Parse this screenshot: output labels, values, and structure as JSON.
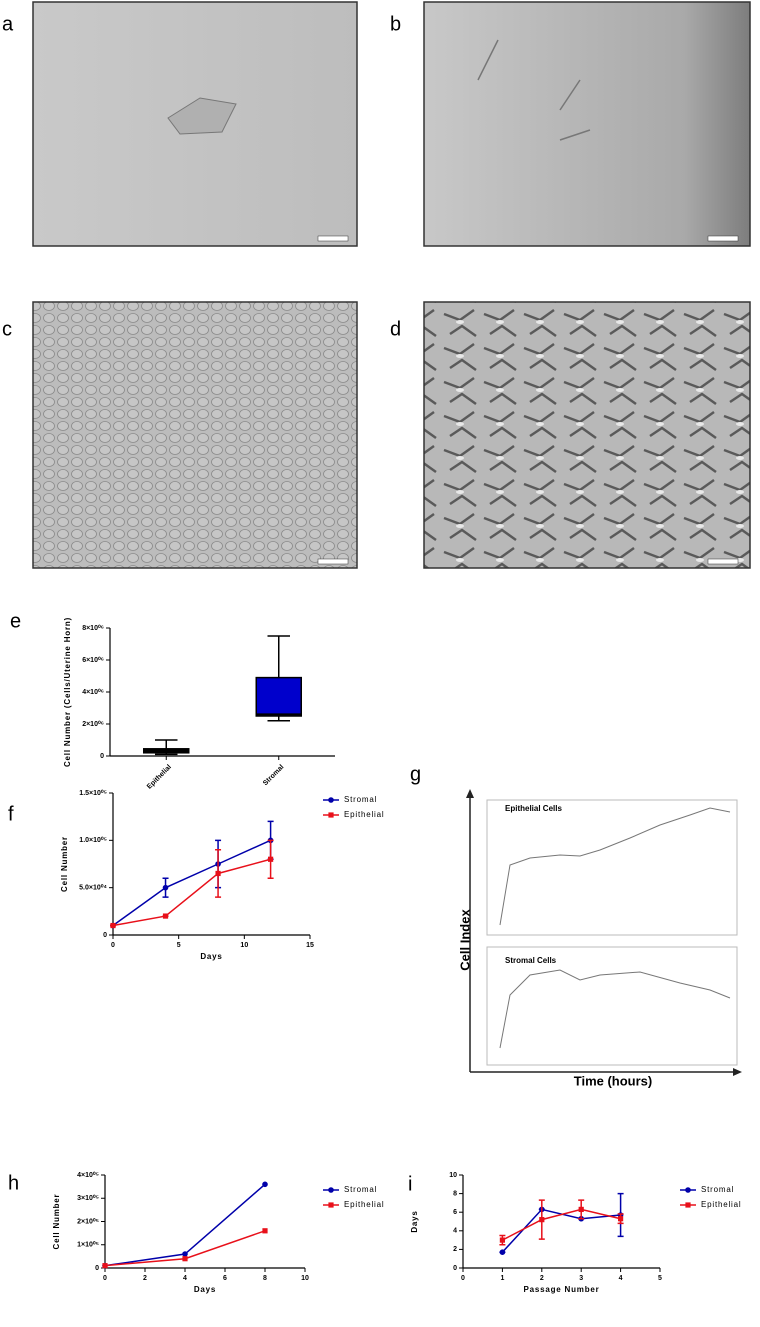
{
  "panels": [
    {
      "label": "a"
    },
    {
      "label": "b"
    },
    {
      "label": "c"
    },
    {
      "label": "d"
    }
  ],
  "cell_index": {
    "label": "g",
    "y_label": "Cell Index",
    "x_label": "Time (hours)",
    "plots": [
      "Epithelial Cells",
      "Stromal Cells"
    ]
  },
  "chart_data": [
    {
      "type": "box",
      "label": "e",
      "y_label": "Cell Number (Cells/Uterine Horn)",
      "categories": [
        "Epithelial",
        "Stromal"
      ],
      "colors": [
        "#000000",
        "#0000cc"
      ],
      "boxes": [
        {
          "min": 100000,
          "q1": 200000,
          "median": 300000,
          "q3": 450000,
          "max": 1000000
        },
        {
          "min": 2200000,
          "q1": 2500000,
          "median": 2600000,
          "q3": 4900000,
          "max": 7500000
        }
      ],
      "ylim": [
        0,
        8000000
      ],
      "yticks": [
        0,
        {
          "value": 2000000,
          "label": "2×10⁰⁶"
        },
        {
          "value": 4000000,
          "label": "4×10⁰⁶"
        },
        {
          "value": 6000000,
          "label": "6×10⁰⁶"
        },
        {
          "value": 8000000,
          "label": "8×10⁰⁶"
        }
      ]
    },
    {
      "type": "line",
      "label": "f",
      "x_label": "Days",
      "y_label": "Cell Number",
      "x": [
        0,
        4,
        8,
        12
      ],
      "series": [
        {
          "name": "Stromal",
          "color": "#0000aa",
          "marker": "circle",
          "values": [
            10000,
            50000,
            75000,
            100000
          ],
          "errors": [
            0,
            10000,
            25000,
            20000
          ]
        },
        {
          "name": "Epithelial",
          "color": "#e8101a",
          "marker": "square",
          "values": [
            10000,
            20000,
            65000,
            80000
          ],
          "errors": [
            0,
            0,
            25000,
            20000
          ]
        }
      ],
      "xlim": [
        0,
        15
      ],
      "xticks": [
        0,
        5,
        10,
        15
      ],
      "ylim": [
        0,
        150000
      ],
      "yticks": [
        0,
        {
          "value": 50000,
          "label": "5.0×10⁰⁴"
        },
        {
          "value": 100000,
          "label": "1.0×10⁰⁵"
        },
        {
          "value": 150000,
          "label": "1.5×10⁰⁵"
        }
      ]
    },
    {
      "type": "line",
      "label": "h",
      "x_label": "Days",
      "y_label": "Cell Number",
      "x": [
        0,
        4,
        8
      ],
      "series": [
        {
          "name": "Stromal",
          "color": "#0000aa",
          "marker": "circle",
          "values": [
            10000,
            60000,
            360000
          ]
        },
        {
          "name": "Epithelial",
          "color": "#e8101a",
          "marker": "square",
          "values": [
            10000,
            40000,
            160000
          ]
        }
      ],
      "xlim": [
        0,
        10
      ],
      "xticks": [
        0,
        2,
        4,
        6,
        8,
        10
      ],
      "ylim": [
        0,
        400000
      ],
      "yticks": [
        0,
        {
          "value": 100000,
          "label": "1×10⁰⁵"
        },
        {
          "value": 200000,
          "label": "2×10⁰⁵"
        },
        {
          "value": 300000,
          "label": "3×10⁰⁵"
        },
        {
          "value": 400000,
          "label": "4×10⁰⁵"
        }
      ]
    },
    {
      "type": "line",
      "label": "i",
      "x_label": "Passage Number",
      "y_label": "Days",
      "x": [
        1,
        2,
        3,
        4
      ],
      "series": [
        {
          "name": "Stromal",
          "color": "#0000aa",
          "marker": "circle",
          "values": [
            1.7,
            6.3,
            5.3,
            5.7
          ],
          "errors": [
            0,
            0,
            0,
            2.3
          ]
        },
        {
          "name": "Epithelial",
          "color": "#e8101a",
          "marker": "square",
          "values": [
            3.0,
            5.2,
            6.3,
            5.3
          ],
          "errors": [
            0.5,
            2.1,
            1.0,
            0.5
          ]
        }
      ],
      "xlim": [
        0,
        5
      ],
      "xticks": [
        0,
        1,
        2,
        3,
        4,
        5
      ],
      "ylim": [
        0,
        10
      ],
      "yticks": [
        0,
        2,
        4,
        6,
        8,
        10
      ]
    }
  ]
}
